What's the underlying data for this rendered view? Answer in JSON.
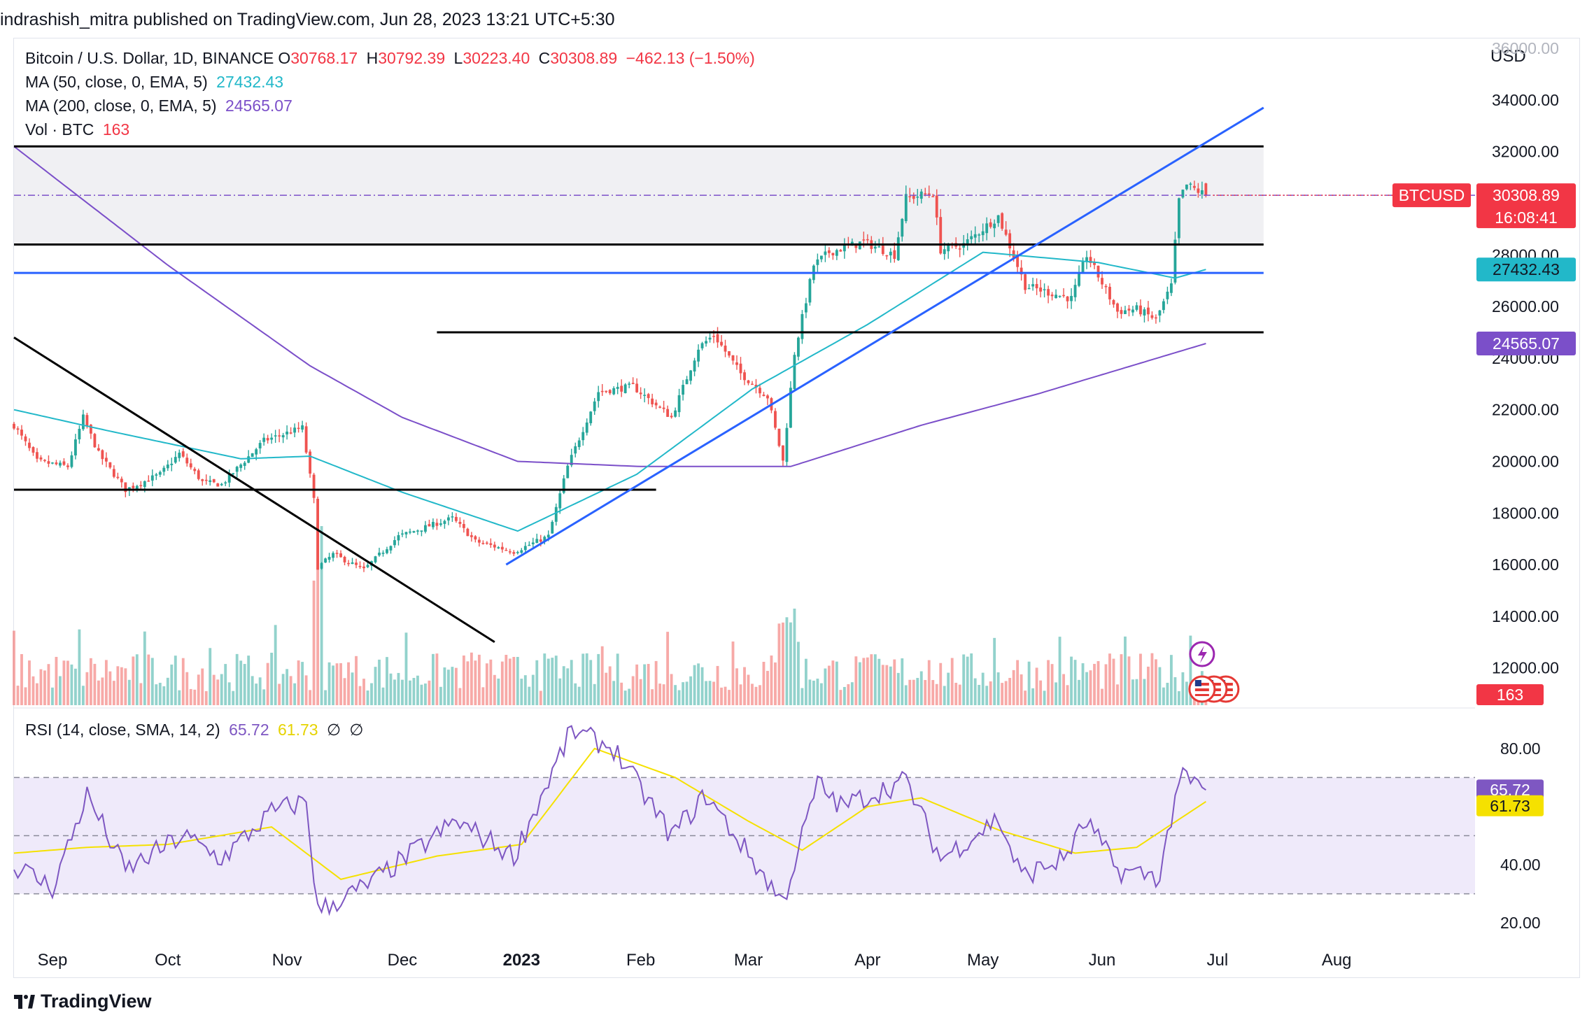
{
  "caption": "indrashish_mitra published on TradingView.com, Jun 28, 2023 13:21 UTC+5:30",
  "legend": {
    "symbol": "Bitcoin / U.S. Dollar, 1D, BINANCE",
    "ohlc_labels": [
      "O",
      "H",
      "L",
      "C"
    ],
    "ohlc_values": [
      "30768.17",
      "30792.39",
      "30223.40",
      "30308.89"
    ],
    "change": "−462.13 (−1.50%)",
    "ma50_label": "MA (50, close, 0, EMA, 5)",
    "ma50_value": "27432.43",
    "ma200_label": "MA (200, close, 0, EMA, 5)",
    "ma200_value": "24565.07",
    "vol_label": "Vol · BTC",
    "vol_value": "163"
  },
  "rsi_legend": {
    "label": "RSI (14, close, SMA, 14, 2)",
    "rsi_value": "65.72",
    "sma_value": "61.73",
    "extra": [
      "∅",
      "∅"
    ]
  },
  "axis": {
    "currency": "USD",
    "price_ticks": [
      "36000.00",
      "34000.00",
      "32000.00",
      "28000.00",
      "26000.00",
      "24000.00",
      "22000.00",
      "20000.00",
      "18000.00",
      "16000.00",
      "14000.00",
      "12000.00"
    ],
    "rsi_ticks": [
      "80.00",
      "40.00",
      "20.00"
    ],
    "x_ticks": [
      "Sep",
      "Oct",
      "Nov",
      "Dec",
      "2023",
      "Feb",
      "Mar",
      "Apr",
      "May",
      "Jun",
      "Jul",
      "Aug"
    ]
  },
  "badges": {
    "symbol": "BTCUSD",
    "price": "30308.89",
    "countdown": "16:08:41",
    "ma50": "27432.43",
    "ma200": "24565.07",
    "volume": "163",
    "rsi": "65.72",
    "rsi_sma": "61.73"
  },
  "colors": {
    "up": "#26a69a",
    "down": "#ef5350",
    "ma50": "#22b8c9",
    "ma200": "#7b4fc9",
    "rsi": "#7e57c2",
    "rsi_sma": "#f5e100",
    "trend_blue": "#2962ff",
    "badge_red": "#f23645"
  },
  "footer": "TradingView",
  "chart_data": {
    "type": "candlestick",
    "symbol": "BTCUSD",
    "timeframe": "1D",
    "price_range": [
      10500,
      36300
    ],
    "rsi_range": [
      15,
      92
    ],
    "rsi_levels": [
      70,
      50,
      30
    ],
    "anchors": [
      [
        "2022-08-22",
        21400
      ],
      [
        "2022-08-28",
        20000
      ],
      [
        "2022-09-05",
        19800
      ],
      [
        "2022-09-09",
        21700
      ],
      [
        "2022-09-13",
        20300
      ],
      [
        "2022-09-20",
        18900
      ],
      [
        "2022-09-29",
        19500
      ],
      [
        "2022-10-04",
        20300
      ],
      [
        "2022-10-10",
        19200
      ],
      [
        "2022-10-15",
        19100
      ],
      [
        "2022-10-26",
        20800
      ],
      [
        "2022-11-05",
        21300
      ],
      [
        "2022-11-08",
        18500
      ],
      [
        "2022-11-09",
        15900
      ],
      [
        "2022-11-13",
        16400
      ],
      [
        "2022-11-21",
        15800
      ],
      [
        "2022-11-30",
        17100
      ],
      [
        "2022-12-14",
        17800
      ],
      [
        "2022-12-20",
        16900
      ],
      [
        "2022-12-30",
        16500
      ],
      [
        "2023-01-08",
        17100
      ],
      [
        "2023-01-13",
        19800
      ],
      [
        "2023-01-21",
        22700
      ],
      [
        "2023-01-30",
        22900
      ],
      [
        "2023-02-09",
        21700
      ],
      [
        "2023-02-16",
        24400
      ],
      [
        "2023-02-20",
        24900
      ],
      [
        "2023-02-27",
        23400
      ],
      [
        "2023-03-06",
        22500
      ],
      [
        "2023-03-10",
        20000
      ],
      [
        "2023-03-13",
        24200
      ],
      [
        "2023-03-18",
        27600
      ],
      [
        "2023-03-22",
        28100
      ],
      [
        "2023-03-31",
        28500
      ],
      [
        "2023-04-08",
        28000
      ],
      [
        "2023-04-11",
        30200
      ],
      [
        "2023-04-18",
        30400
      ],
      [
        "2023-04-20",
        28200
      ],
      [
        "2023-04-26",
        28400
      ],
      [
        "2023-05-05",
        29500
      ],
      [
        "2023-05-12",
        26800
      ],
      [
        "2023-05-24",
        26300
      ],
      [
        "2023-05-28",
        28000
      ],
      [
        "2023-06-05",
        25800
      ],
      [
        "2023-06-10",
        25900
      ],
      [
        "2023-06-15",
        25500
      ],
      [
        "2023-06-19",
        26800
      ],
      [
        "2023-06-21",
        30100
      ],
      [
        "2023-06-23",
        30700
      ],
      [
        "2023-06-28",
        30308.89
      ]
    ],
    "ma50_anchors": [
      [
        "2022-08-22",
        22000
      ],
      [
        "2022-09-15",
        21200
      ],
      [
        "2022-10-20",
        20100
      ],
      [
        "2022-11-07",
        20200
      ],
      [
        "2022-12-01",
        18800
      ],
      [
        "2022-12-31",
        17300
      ],
      [
        "2023-01-31",
        19500
      ],
      [
        "2023-03-02",
        22800
      ],
      [
        "2023-04-01",
        25300
      ],
      [
        "2023-05-01",
        28100
      ],
      [
        "2023-05-31",
        27700
      ],
      [
        "2023-06-20",
        27100
      ],
      [
        "2023-06-28",
        27432.43
      ]
    ],
    "ma200_anchors": [
      [
        "2022-08-22",
        32200
      ],
      [
        "2022-10-01",
        27600
      ],
      [
        "2022-11-07",
        23700
      ],
      [
        "2022-12-01",
        21700
      ],
      [
        "2022-12-31",
        20000
      ],
      [
        "2023-02-01",
        19800
      ],
      [
        "2023-03-12",
        19800
      ],
      [
        "2023-04-15",
        21400
      ],
      [
        "2023-05-15",
        22600
      ],
      [
        "2023-06-28",
        24565.07
      ]
    ],
    "rsi_anchors": [
      [
        "2022-08-22",
        40
      ],
      [
        "2022-09-01",
        32
      ],
      [
        "2022-09-10",
        64
      ],
      [
        "2022-09-20",
        38
      ],
      [
        "2022-10-05",
        50
      ],
      [
        "2022-10-15",
        42
      ],
      [
        "2022-10-28",
        58
      ],
      [
        "2022-11-06",
        62
      ],
      [
        "2022-11-09",
        24
      ],
      [
        "2022-11-22",
        33
      ],
      [
        "2022-12-15",
        55
      ],
      [
        "2022-12-30",
        43
      ],
      [
        "2023-01-14",
        86
      ],
      [
        "2023-01-25",
        80
      ],
      [
        "2023-02-09",
        50
      ],
      [
        "2023-02-18",
        64
      ],
      [
        "2023-03-10",
        27
      ],
      [
        "2023-03-19",
        68
      ],
      [
        "2023-03-25",
        60
      ],
      [
        "2023-04-11",
        69
      ],
      [
        "2023-04-20",
        42
      ],
      [
        "2023-05-05",
        56
      ],
      [
        "2023-05-11",
        36
      ],
      [
        "2023-05-22",
        42
      ],
      [
        "2023-05-28",
        55
      ],
      [
        "2023-06-05",
        38
      ],
      [
        "2023-06-16",
        36
      ],
      [
        "2023-06-21",
        70
      ],
      [
        "2023-06-28",
        65.72
      ]
    ],
    "rsi_sma_anchors": [
      [
        "2022-08-22",
        44
      ],
      [
        "2022-09-10",
        46
      ],
      [
        "2022-10-01",
        47
      ],
      [
        "2022-10-28",
        53
      ],
      [
        "2022-11-15",
        35
      ],
      [
        "2022-12-10",
        43
      ],
      [
        "2023-01-01",
        47
      ],
      [
        "2023-01-20",
        80
      ],
      [
        "2023-02-10",
        70
      ],
      [
        "2023-03-01",
        55
      ],
      [
        "2023-03-15",
        45
      ],
      [
        "2023-04-01",
        60
      ],
      [
        "2023-04-15",
        63
      ],
      [
        "2023-05-05",
        52
      ],
      [
        "2023-05-25",
        44
      ],
      [
        "2023-06-10",
        46
      ],
      [
        "2023-06-28",
        61.73
      ]
    ],
    "support_resistance": [
      {
        "from": "2022-08-22",
        "to": "2023-07-13",
        "price": 32200
      },
      {
        "from": "2022-08-22",
        "to": "2023-07-13",
        "price": 28400
      },
      {
        "from": "2022-08-22",
        "to": "2023-07-13",
        "price": 27300,
        "color": "blue"
      },
      {
        "from": "2022-12-10",
        "to": "2023-07-13",
        "price": 25000
      },
      {
        "from": "2022-08-22",
        "to": "2023-02-05",
        "price": 18900
      }
    ],
    "trendlines": [
      {
        "from": [
          "2022-08-22",
          24800
        ],
        "to": [
          "2022-12-25",
          13000
        ],
        "color": "black"
      },
      {
        "from": [
          "2022-12-28",
          16000
        ],
        "to": [
          "2023-07-13",
          33700
        ],
        "color": "blue"
      }
    ],
    "shaded_zone": [
      28400,
      32200
    ],
    "last_price": 30308.89,
    "last_volume": 163
  }
}
